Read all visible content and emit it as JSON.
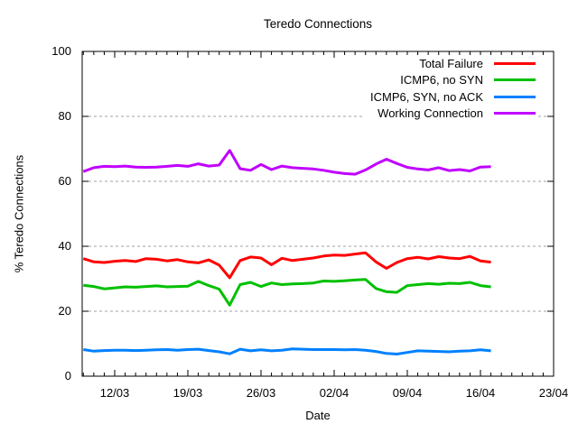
{
  "chart_data": {
    "type": "line",
    "title": "Teredo Connections",
    "xlabel": "Date",
    "ylabel": "% Teredo Connections",
    "ylim": [
      0,
      100
    ],
    "yticks": [
      0,
      20,
      40,
      60,
      80,
      100
    ],
    "xticks": [
      "12/03",
      "19/03",
      "26/03",
      "02/04",
      "09/04",
      "16/04",
      "23/04"
    ],
    "grid": "horizontal-dashed",
    "legend_position": "top-right-inside",
    "x_dates": [
      "09/03",
      "10/03",
      "11/03",
      "12/03",
      "13/03",
      "14/03",
      "15/03",
      "16/03",
      "17/03",
      "18/03",
      "19/03",
      "20/03",
      "21/03",
      "22/03",
      "23/03",
      "24/03",
      "25/03",
      "26/03",
      "27/03",
      "28/03",
      "29/03",
      "30/03",
      "31/03",
      "01/04",
      "02/04",
      "03/04",
      "04/04",
      "05/04",
      "06/04",
      "07/04",
      "08/04",
      "09/04",
      "10/04",
      "11/04",
      "12/04",
      "13/04",
      "14/04",
      "15/04",
      "16/04",
      "17/04"
    ],
    "series": [
      {
        "name": "Total Failure",
        "color": "#ff0000",
        "values": [
          36.2,
          35.2,
          35.0,
          35.4,
          35.6,
          35.3,
          36.2,
          36.0,
          35.5,
          35.9,
          35.2,
          34.9,
          35.8,
          34.2,
          30.3,
          35.6,
          36.7,
          36.4,
          34.3,
          36.3,
          35.6,
          36.0,
          36.4,
          37.0,
          37.3,
          37.2,
          37.6,
          38.0,
          35.2,
          33.2,
          35.0,
          36.2,
          36.6,
          36.1,
          36.8,
          36.4,
          36.2,
          36.9,
          35.5,
          35.1
        ]
      },
      {
        "name": "ICMP6, no SYN",
        "color": "#00c000",
        "values": [
          28.0,
          27.6,
          26.9,
          27.2,
          27.5,
          27.4,
          27.6,
          27.8,
          27.5,
          27.6,
          27.7,
          29.2,
          27.9,
          26.8,
          21.9,
          28.2,
          28.9,
          27.6,
          28.7,
          28.2,
          28.4,
          28.5,
          28.7,
          29.3,
          29.2,
          29.4,
          29.6,
          29.8,
          27.0,
          26.0,
          25.8,
          27.9,
          28.2,
          28.5,
          28.3,
          28.6,
          28.5,
          28.9,
          27.9,
          27.5
        ]
      },
      {
        "name": "ICMP6, SYN, no ACK",
        "color": "#0080ff",
        "values": [
          8.2,
          7.7,
          7.9,
          8.0,
          8.0,
          7.9,
          8.0,
          8.1,
          8.2,
          8.0,
          8.2,
          8.3,
          7.9,
          7.5,
          6.9,
          8.3,
          7.8,
          8.1,
          7.8,
          8.0,
          8.4,
          8.3,
          8.2,
          8.2,
          8.2,
          8.1,
          8.2,
          8.0,
          7.6,
          7.0,
          6.8,
          7.3,
          7.8,
          7.7,
          7.6,
          7.5,
          7.7,
          7.8,
          8.1,
          7.8
        ]
      },
      {
        "name": "Working Connection",
        "color": "#c000ff",
        "values": [
          63.0,
          64.2,
          64.6,
          64.5,
          64.7,
          64.4,
          64.3,
          64.4,
          64.6,
          64.9,
          64.6,
          65.4,
          64.7,
          65.0,
          69.5,
          63.9,
          63.4,
          65.2,
          63.6,
          64.7,
          64.2,
          64.0,
          63.8,
          63.4,
          62.8,
          62.4,
          62.2,
          63.5,
          65.3,
          66.8,
          65.5,
          64.3,
          63.8,
          63.5,
          64.2,
          63.3,
          63.6,
          63.2,
          64.4,
          64.5
        ]
      }
    ]
  }
}
